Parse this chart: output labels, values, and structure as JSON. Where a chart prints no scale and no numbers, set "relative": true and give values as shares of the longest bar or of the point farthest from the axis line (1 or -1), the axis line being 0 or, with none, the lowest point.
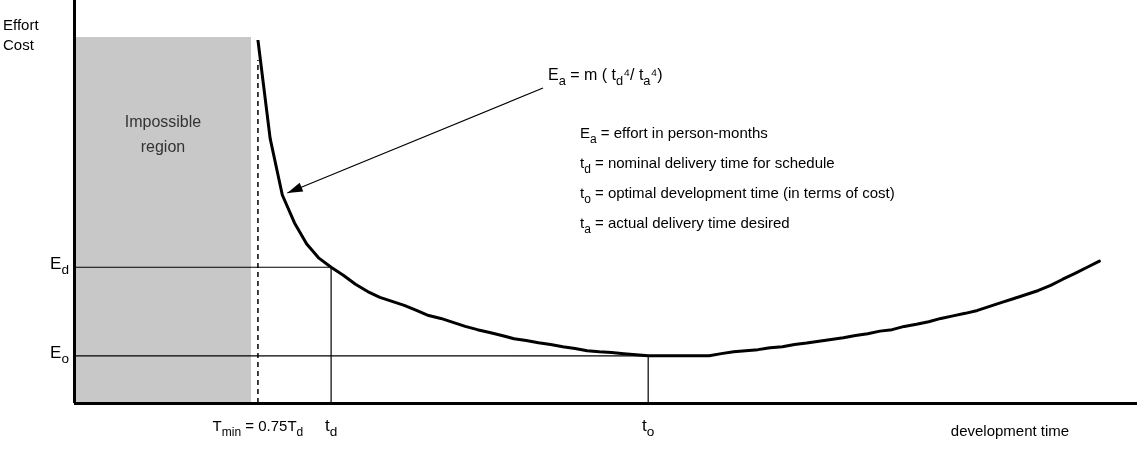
{
  "chart_data": {
    "type": "line",
    "relative": true,
    "xlabel": "development time",
    "categories": [
      null,
      null,
      null,
      null,
      null,
      null,
      null,
      null,
      null,
      null,
      null,
      null,
      null,
      null,
      null,
      "T$_{min}$ = 0.75T$_{d}$",
      null,
      null,
      null,
      null,
      null,
      "t$_{d}$",
      null,
      null,
      null,
      null,
      null,
      null,
      null,
      null,
      null,
      null,
      null,
      null,
      null,
      null,
      null,
      null,
      null,
      null,
      null,
      null,
      null,
      null,
      null,
      null,
      null,
      "t$_{o}$",
      null,
      null,
      null,
      null,
      null,
      null,
      null,
      null,
      null,
      null,
      null,
      null,
      null,
      null,
      null,
      null,
      null,
      null,
      null,
      null,
      null,
      null,
      null,
      null,
      null,
      null,
      null,
      null,
      null,
      null,
      null,
      null,
      null,
      null,
      null,
      null,
      null,
      null,
      null,
      null
    ],
    "series": [
      {
        "color": "#000000",
        "values": [
          null,
          null,
          null,
          null,
          null,
          null,
          null,
          null,
          null,
          null,
          null,
          null,
          null,
          null,
          null,
          1.0,
          0.729,
          0.573,
          0.496,
          0.438,
          0.399,
          0.374,
          0.352,
          0.327,
          0.307,
          0.291,
          0.28,
          0.269,
          0.255,
          0.241,
          0.233,
          0.222,
          0.211,
          0.202,
          0.194,
          0.186,
          0.177,
          0.172,
          0.166,
          0.161,
          0.155,
          0.15,
          0.144,
          0.141,
          0.139,
          0.136,
          0.133,
          0.13,
          0.13,
          0.13,
          0.13,
          0.13,
          0.13,
          0.136,
          0.141,
          0.144,
          0.147,
          0.152,
          0.155,
          0.161,
          0.165,
          0.17,
          0.175,
          0.18,
          0.186,
          0.191,
          0.198,
          0.202,
          0.211,
          0.217,
          0.224,
          0.233,
          0.24,
          0.247,
          0.255,
          0.266,
          0.277,
          0.288,
          0.299,
          0.31,
          0.324,
          0.341,
          0.357,
          0.374,
          0.391,
          null,
          null,
          null
        ]
      },
      {
        "name": "E$_{d}$",
        "color": "#000000",
        "values": [
          0.374,
          0.374,
          0.374,
          0.374,
          0.374,
          0.374,
          0.374,
          0.374,
          0.374,
          0.374,
          0.374,
          0.374,
          0.374,
          0.374,
          0.374,
          0.374,
          0.374,
          0.374,
          0.374,
          0.374,
          0.374,
          0.374,
          null,
          null,
          null,
          null,
          null,
          null,
          null,
          null,
          null,
          null,
          null,
          null,
          null,
          null,
          null,
          null,
          null,
          null,
          null,
          null,
          null,
          null,
          null,
          null,
          null,
          null,
          null,
          null,
          null,
          null,
          null,
          null,
          null,
          null,
          null,
          null,
          null,
          null,
          null,
          null,
          null,
          null,
          null,
          null,
          null,
          null,
          null,
          null,
          null,
          null,
          null,
          null,
          null,
          null,
          null,
          null,
          null,
          null,
          null,
          null,
          null,
          null,
          null,
          null,
          null,
          null
        ]
      },
      {
        "name": "E$_{o}$",
        "color": "#000000",
        "values": [
          0.13,
          0.13,
          0.13,
          0.13,
          0.13,
          0.13,
          0.13,
          0.13,
          0.13,
          0.13,
          0.13,
          0.13,
          0.13,
          0.13,
          0.13,
          0.13,
          0.13,
          0.13,
          0.13,
          0.13,
          0.13,
          0.13,
          0.13,
          0.13,
          0.13,
          0.13,
          0.13,
          0.13,
          0.13,
          0.13,
          0.13,
          0.13,
          0.13,
          0.13,
          0.13,
          0.13,
          0.13,
          0.13,
          0.13,
          0.13,
          0.13,
          0.13,
          0.13,
          0.13,
          0.13,
          0.13,
          0.13,
          0.13,
          null,
          null,
          null,
          null,
          null,
          null,
          null,
          null,
          null,
          null,
          null,
          null,
          null,
          null,
          null,
          null,
          null,
          null,
          null,
          null,
          null,
          null,
          null,
          null,
          null,
          null,
          null,
          null,
          null,
          null,
          null,
          null,
          null,
          null,
          null,
          null,
          null,
          null,
          null,
          null
        ]
      }
    ],
    "ref_lines": [
      {
        "axis": "x",
        "value": "T$_{min}$ = 0.75T$_{d}$",
        "line_style": "dashed",
        "color": "#000000"
      },
      {
        "axis": "x",
        "value": "t$_{d}$",
        "color": "#000000"
      },
      {
        "axis": "x",
        "value": "t$_{o}$",
        "color": "#000000"
      }
    ],
    "annotations": [
      "Impossible region",
      "E$_{a}$ = m ( t$_{d}$⁴/ t$_{a}$⁴)",
      "E$_{a}$ = effort in person-months",
      "t$_{d}$ = nominal delivery time for schedule",
      "t$_{o}$ = optimal development time (in terms of cost)",
      "t$_{a}$ = actual delivery time desired",
      "Effort Cost"
    ],
    "grid": false,
    "legend": false
  }
}
